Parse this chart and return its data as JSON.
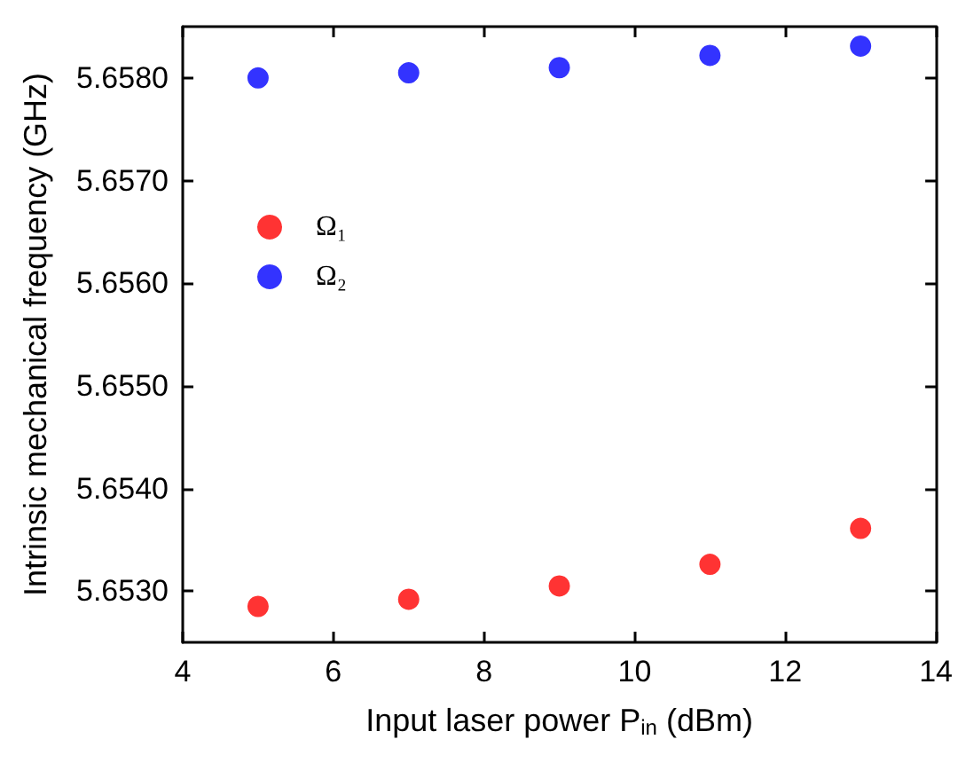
{
  "chart_data": {
    "type": "scatter",
    "xlabel": "Input laser power P$_{in}$ (dBm)",
    "ylabel": "Intrinsic mechanical frequency (GHz)",
    "x": [
      5,
      7,
      9,
      11,
      13
    ],
    "series": [
      {
        "name": "Ω₁",
        "color": "#ff0000",
        "values": [
          5.65285,
          5.65292,
          5.65305,
          5.65326,
          5.65361
        ]
      },
      {
        "name": "Ω₂",
        "color": "#0000ff",
        "values": [
          5.658,
          5.65805,
          5.6581,
          5.65822,
          5.65831
        ]
      }
    ],
    "xlim": [
      4,
      14
    ],
    "xticks": [
      4,
      6,
      8,
      10,
      12,
      14
    ],
    "ylim": [
      5.6525,
      5.6585
    ],
    "yticks": [
      {
        "value": 5.653,
        "label": "5.6530"
      },
      {
        "value": 5.654,
        "label": "5.6540"
      },
      {
        "value": 5.655,
        "label": "5.6550"
      },
      {
        "value": 5.656,
        "label": "5.6560"
      },
      {
        "value": 5.657,
        "label": "5.6570"
      },
      {
        "value": 5.658,
        "label": "5.6580"
      }
    ],
    "legend": "left",
    "marker": "circle",
    "grid": false
  }
}
